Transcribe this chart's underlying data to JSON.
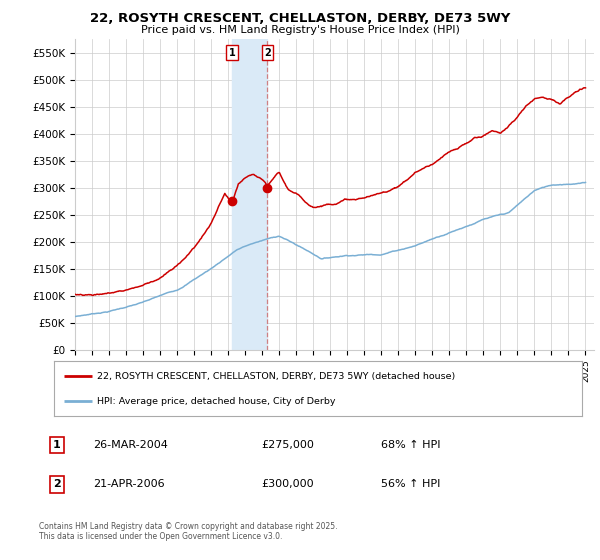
{
  "title": "22, ROSYTH CRESCENT, CHELLASTON, DERBY, DE73 5WY",
  "subtitle": "Price paid vs. HM Land Registry's House Price Index (HPI)",
  "ylabel_ticks": [
    "£0",
    "£50K",
    "£100K",
    "£150K",
    "£200K",
    "£250K",
    "£300K",
    "£350K",
    "£400K",
    "£450K",
    "£500K",
    "£550K"
  ],
  "ytick_vals": [
    0,
    50000,
    100000,
    150000,
    200000,
    250000,
    300000,
    350000,
    400000,
    450000,
    500000,
    550000
  ],
  "ylim": [
    0,
    575000
  ],
  "xlim_start": 1995.0,
  "xlim_end": 2025.5,
  "transaction1": {
    "date_num": 2004.23,
    "price": 275000,
    "label": "1",
    "date_str": "26-MAR-2004",
    "pct": "68% ↑ HPI"
  },
  "transaction2": {
    "date_num": 2006.31,
    "price": 300000,
    "label": "2",
    "date_str": "21-APR-2006",
    "pct": "56% ↑ HPI"
  },
  "red_line_color": "#cc0000",
  "blue_line_color": "#7aafd4",
  "shade_color": "#daeaf7",
  "grid_color": "#cccccc",
  "background_color": "#ffffff",
  "legend1_label": "22, ROSYTH CRESCENT, CHELLASTON, DERBY, DE73 5WY (detached house)",
  "legend2_label": "HPI: Average price, detached house, City of Derby",
  "footer": "Contains HM Land Registry data © Crown copyright and database right 2025.\nThis data is licensed under the Open Government Licence v3.0.",
  "xtick_years": [
    1995,
    1996,
    1997,
    1998,
    1999,
    2000,
    2001,
    2002,
    2003,
    2004,
    2005,
    2006,
    2007,
    2008,
    2009,
    2010,
    2011,
    2012,
    2013,
    2014,
    2015,
    2016,
    2017,
    2018,
    2019,
    2020,
    2021,
    2022,
    2023,
    2024,
    2025
  ],
  "hpi_keypoints": [
    [
      1995.0,
      62000
    ],
    [
      1997.0,
      72000
    ],
    [
      1999.0,
      88000
    ],
    [
      2001.0,
      110000
    ],
    [
      2003.0,
      150000
    ],
    [
      2004.5,
      185000
    ],
    [
      2005.5,
      197000
    ],
    [
      2007.0,
      210000
    ],
    [
      2008.5,
      185000
    ],
    [
      2009.5,
      168000
    ],
    [
      2011.0,
      175000
    ],
    [
      2013.0,
      178000
    ],
    [
      2015.0,
      195000
    ],
    [
      2017.0,
      220000
    ],
    [
      2019.0,
      245000
    ],
    [
      2020.5,
      255000
    ],
    [
      2022.0,
      295000
    ],
    [
      2023.0,
      305000
    ],
    [
      2024.0,
      308000
    ],
    [
      2025.0,
      310000
    ]
  ],
  "red_keypoints": [
    [
      1995.0,
      103000
    ],
    [
      1996.0,
      105000
    ],
    [
      1997.0,
      108000
    ],
    [
      1998.0,
      115000
    ],
    [
      1999.0,
      125000
    ],
    [
      2000.0,
      140000
    ],
    [
      2001.0,
      160000
    ],
    [
      2002.0,
      195000
    ],
    [
      2003.0,
      240000
    ],
    [
      2003.8,
      295000
    ],
    [
      2004.23,
      275000
    ],
    [
      2004.6,
      310000
    ],
    [
      2005.0,
      320000
    ],
    [
      2005.5,
      325000
    ],
    [
      2006.0,
      315000
    ],
    [
      2006.31,
      300000
    ],
    [
      2006.8,
      320000
    ],
    [
      2007.0,
      325000
    ],
    [
      2007.5,
      295000
    ],
    [
      2008.0,
      285000
    ],
    [
      2008.5,
      270000
    ],
    [
      2009.0,
      262000
    ],
    [
      2009.5,
      265000
    ],
    [
      2010.0,
      270000
    ],
    [
      2010.5,
      275000
    ],
    [
      2011.0,
      280000
    ],
    [
      2011.5,
      278000
    ],
    [
      2012.0,
      282000
    ],
    [
      2012.5,
      285000
    ],
    [
      2013.0,
      288000
    ],
    [
      2013.5,
      295000
    ],
    [
      2014.0,
      305000
    ],
    [
      2014.5,
      315000
    ],
    [
      2015.0,
      330000
    ],
    [
      2015.5,
      338000
    ],
    [
      2016.0,
      345000
    ],
    [
      2016.5,
      355000
    ],
    [
      2017.0,
      365000
    ],
    [
      2017.5,
      370000
    ],
    [
      2018.0,
      380000
    ],
    [
      2018.5,
      390000
    ],
    [
      2019.0,
      395000
    ],
    [
      2019.5,
      405000
    ],
    [
      2020.0,
      400000
    ],
    [
      2020.5,
      415000
    ],
    [
      2021.0,
      430000
    ],
    [
      2021.5,
      450000
    ],
    [
      2022.0,
      465000
    ],
    [
      2022.5,
      470000
    ],
    [
      2023.0,
      468000
    ],
    [
      2023.5,
      460000
    ],
    [
      2024.0,
      470000
    ],
    [
      2024.5,
      480000
    ],
    [
      2025.0,
      485000
    ]
  ]
}
